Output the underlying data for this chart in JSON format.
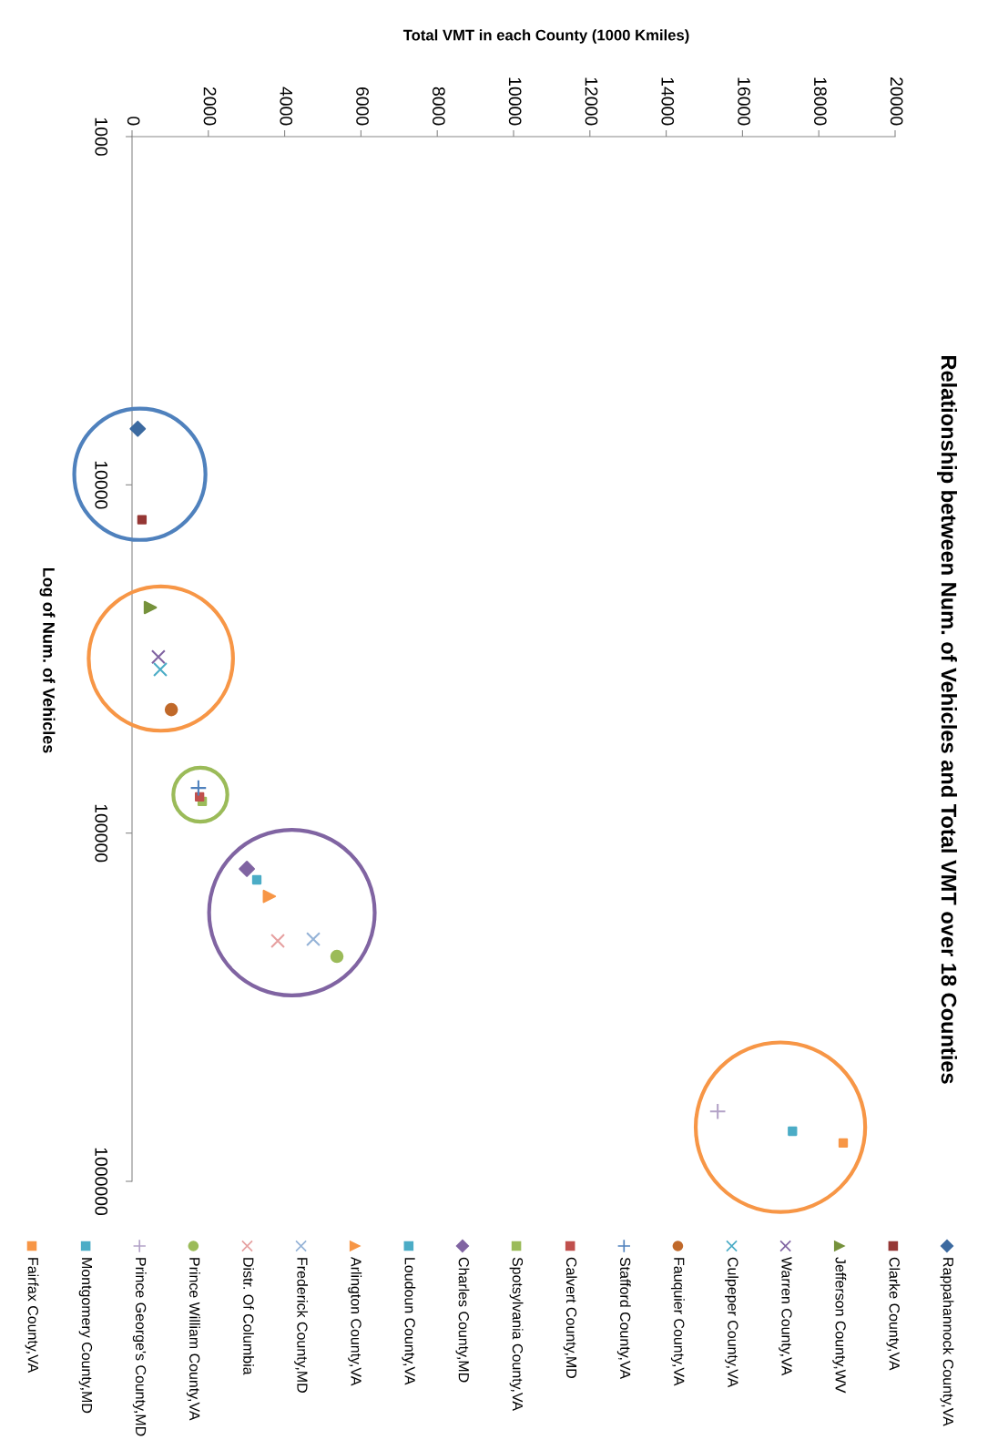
{
  "chart_data": {
    "type": "scatter",
    "title": "Relationship between Num. of Vehicles and Total VMT over 18 Counties",
    "xlabel": "Total VMT in each County (1000 Kmiles)",
    "ylabel": "Log of Num. of Vehicles",
    "log": "y",
    "xlim": [
      0,
      20000
    ],
    "xticks": [
      0,
      2000,
      4000,
      6000,
      8000,
      10000,
      12000,
      14000,
      16000,
      18000,
      20000
    ],
    "ylim": [
      1000000,
      1000
    ],
    "yticks": [
      1000,
      10000,
      100000,
      1000000
    ],
    "grid": false,
    "legend": "bottom",
    "series": [
      {
        "name": "Rappahannock County,VA",
        "color": "#3c6aa0",
        "marker": "diamond",
        "x": [
          150
        ],
        "values": [
          6900
        ]
      },
      {
        "name": "Clarke County,VA",
        "color": "#953735",
        "marker": "square",
        "x": [
          260
        ],
        "values": [
          12600
        ]
      },
      {
        "name": "Jefferson County,WV",
        "color": "#76923c",
        "marker": "triangle",
        "x": [
          480
        ],
        "values": [
          22500
        ]
      },
      {
        "name": "Warren County,VA",
        "color": "#8064a2",
        "marker": "cross",
        "x": [
          690
        ],
        "values": [
          31200
        ]
      },
      {
        "name": "Culpeper County,VA",
        "color": "#4bacc6",
        "marker": "cross",
        "x": [
          740
        ],
        "values": [
          33900
        ]
      },
      {
        "name": "Fauquier County,VA",
        "color": "#c0692a",
        "marker": "circle",
        "x": [
          1030
        ],
        "values": [
          44200
        ]
      },
      {
        "name": "Stafford County,VA",
        "color": "#4f81bd",
        "marker": "plus",
        "x": [
          1740
        ],
        "values": [
          74200
        ]
      },
      {
        "name": "Calvert County,MD",
        "color": "#c0504d",
        "marker": "square",
        "x": [
          1770
        ],
        "values": [
          78700
        ]
      },
      {
        "name": "Spotsylvania County,VA",
        "color": "#9bbb59",
        "marker": "square",
        "x": [
          1840
        ],
        "values": [
          81100
        ]
      },
      {
        "name": "Charles County,MD",
        "color": "#8064a2",
        "marker": "diamond",
        "x": [
          3010
        ],
        "values": [
          126700
        ]
      },
      {
        "name": "Loudoun County,VA",
        "color": "#4bacc6",
        "marker": "square",
        "x": [
          3270
        ],
        "values": [
          136200
        ]
      },
      {
        "name": "Arlington County,VA",
        "color": "#f79646",
        "marker": "triangle",
        "x": [
          3600
        ],
        "values": [
          152000
        ]
      },
      {
        "name": "Frederick County,MD",
        "color": "#95b3d7",
        "marker": "cross",
        "x": [
          4750
        ],
        "values": [
          201600
        ]
      },
      {
        "name": "Distr. Of Columbia",
        "color": "#e6a0a0",
        "marker": "cross",
        "x": [
          3820
        ],
        "values": [
          204000
        ]
      },
      {
        "name": "Prince William County,VA",
        "color": "#9bbb59",
        "marker": "circle",
        "x": [
          5370
        ],
        "values": [
          226000
        ]
      },
      {
        "name": "Prince George's County,MD",
        "color": "#b3a2c7",
        "marker": "plus",
        "x": [
          15350
        ],
        "values": [
          630000
        ]
      },
      {
        "name": "Montgomery County,MD",
        "color": "#4bacc6",
        "marker": "square",
        "x": [
          17310
        ],
        "values": [
          718000
        ]
      },
      {
        "name": "Fairfax County,VA",
        "color": "#f79646",
        "marker": "square",
        "x": [
          18640
        ],
        "values": [
          776000
        ]
      }
    ]
  }
}
